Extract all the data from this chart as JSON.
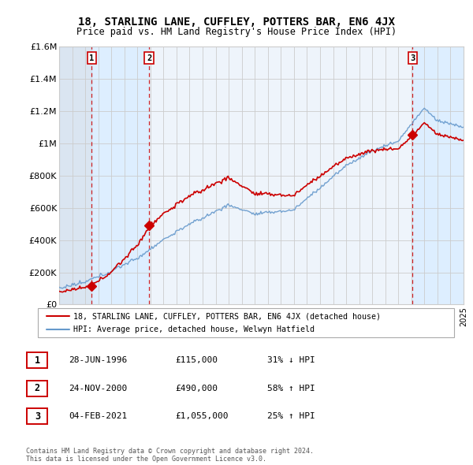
{
  "title": "18, STARLING LANE, CUFFLEY, POTTERS BAR, EN6 4JX",
  "subtitle": "Price paid vs. HM Land Registry's House Price Index (HPI)",
  "ylim": [
    0,
    1600000
  ],
  "yticks": [
    0,
    200000,
    400000,
    600000,
    800000,
    1000000,
    1200000,
    1400000,
    1600000
  ],
  "ytick_labels": [
    "£0",
    "£200K",
    "£400K",
    "£600K",
    "£800K",
    "£1M",
    "£1.2M",
    "£1.4M",
    "£1.6M"
  ],
  "xlim_start": 1994,
  "xlim_end": 2025,
  "sale_years": [
    1996.493,
    2000.899,
    2021.093
  ],
  "sale_prices": [
    115000,
    490000,
    1055000
  ],
  "sale_labels": [
    "1",
    "2",
    "3"
  ],
  "red_line_color": "#cc0000",
  "blue_line_color": "#6699cc",
  "grid_color": "#cccccc",
  "shade_color": "#ddeeff",
  "bg_color": "#eef4fb",
  "legend_entries": [
    "18, STARLING LANE, CUFFLEY, POTTERS BAR, EN6 4JX (detached house)",
    "HPI: Average price, detached house, Welwyn Hatfield"
  ],
  "table_rows": [
    [
      "1",
      "28-JUN-1996",
      "£115,000",
      "31% ↓ HPI"
    ],
    [
      "2",
      "24-NOV-2000",
      "£490,000",
      "58% ↑ HPI"
    ],
    [
      "3",
      "04-FEB-2021",
      "£1,055,000",
      "25% ↑ HPI"
    ]
  ],
  "footer": "Contains HM Land Registry data © Crown copyright and database right 2024.\nThis data is licensed under the Open Government Licence v3.0."
}
